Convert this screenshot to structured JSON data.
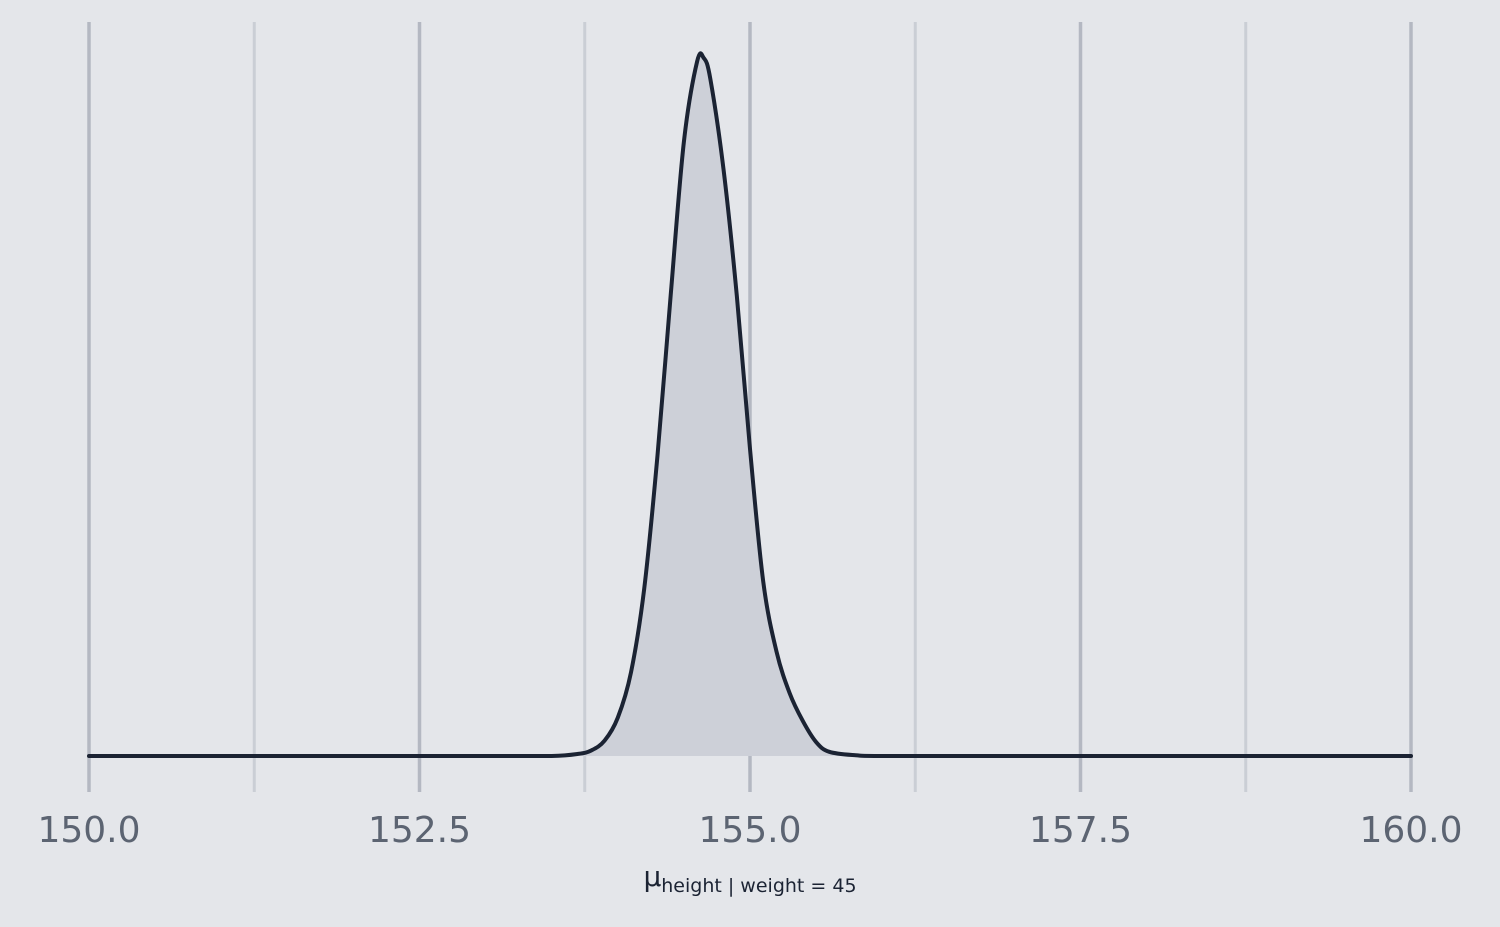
{
  "chart_data": {
    "type": "area",
    "x": [
      150.0,
      151.0,
      152.0,
      153.0,
      153.5,
      153.7,
      153.8,
      153.9,
      154.0,
      154.1,
      154.2,
      154.3,
      154.4,
      154.5,
      154.6,
      154.65,
      154.7,
      154.8,
      154.9,
      155.0,
      155.1,
      155.2,
      155.3,
      155.4,
      155.5,
      155.6,
      155.8,
      156.0,
      157.0,
      158.0,
      159.0,
      160.0
    ],
    "y": [
      0.0,
      0.0,
      0.0,
      0.0,
      0.0,
      0.003,
      0.008,
      0.022,
      0.055,
      0.12,
      0.24,
      0.43,
      0.66,
      0.88,
      0.995,
      1.0,
      0.97,
      0.84,
      0.66,
      0.44,
      0.25,
      0.15,
      0.09,
      0.05,
      0.02,
      0.006,
      0.001,
      0.0,
      0.0,
      0.0,
      0.0,
      0.0
    ],
    "xticks": [
      "150.0",
      "152.5",
      "155.0",
      "157.5",
      "160.0"
    ],
    "xlim": [
      150.0,
      160.0
    ],
    "ylim": [
      0,
      1
    ],
    "xlabel_main": "μ",
    "xlabel_sub": "height | weight = 45",
    "grid": "vertical",
    "colors": {
      "background": "#e4e6ea",
      "grid_major": "#b4b8c2",
      "grid_minor": "#caced5",
      "fill": "#cdd0d8",
      "line": "#1b2333",
      "tick_text": "#5c6472"
    }
  }
}
